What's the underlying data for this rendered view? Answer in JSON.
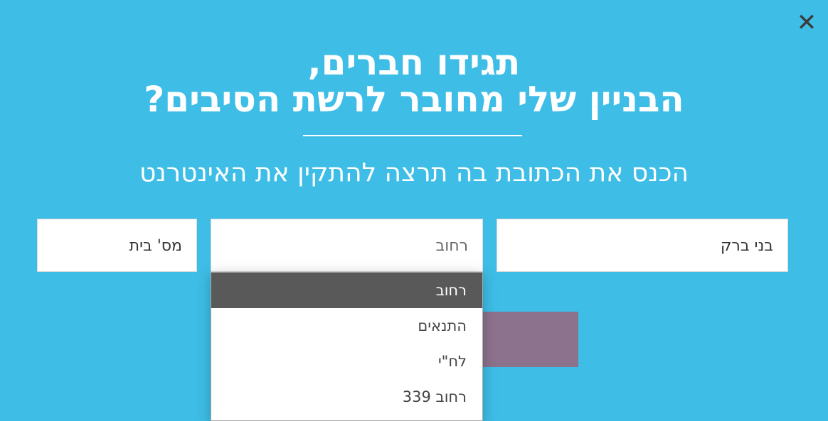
{
  "close_icon": "close-x-icon",
  "title_line1": "תגידו חברים,",
  "title_line2": "הבניין שלי מחובר לרשת הסיבים?",
  "subtitle": "הכנס את הכתובת בה תרצה להתקין את האינטרנט",
  "form": {
    "city_value": "בני ברק",
    "street_placeholder": "רחוב",
    "house_placeholder": "מס' בית"
  },
  "dropdown": {
    "options": [
      "רחוב",
      "התנאים",
      "לח\"י",
      "רחוב 339"
    ],
    "selected_index": 0
  },
  "colors": {
    "background": "#3ebde6",
    "submit": "#8d728d",
    "selected_option": "#595959"
  }
}
